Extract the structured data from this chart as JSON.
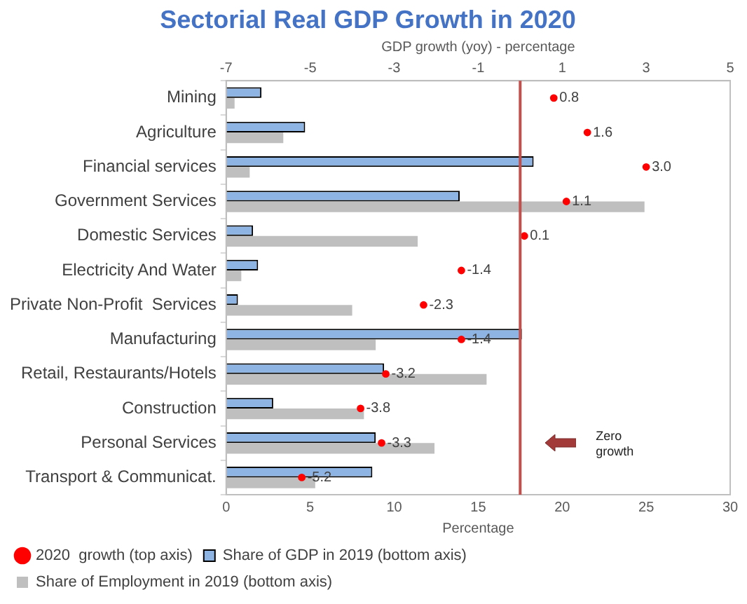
{
  "chart_data": {
    "type": "bar",
    "orientation": "horizontal",
    "title": "Sectorial Real GDP Growth in 2020",
    "xlabel": "Percentage",
    "x2label": "GDP growth (yoy) - percentage",
    "categories": [
      "Mining",
      "Agriculture",
      "Financial services",
      "Government Services",
      "Domestic Services",
      "Electricity And Water",
      "Private Non-Profit  Services",
      "Manufacturing",
      "Retail, Restaurants/Hotels",
      "Construction",
      "Personal Services",
      "Transport & Communicat."
    ],
    "series": [
      {
        "name": "Share of GDP in 2019 (bottom axis)",
        "color": "#8db4e2",
        "values": [
          2.1,
          4.7,
          18.3,
          13.9,
          1.6,
          1.9,
          0.7,
          17.6,
          9.4,
          2.8,
          8.9,
          8.7
        ]
      },
      {
        "name": "Share of Employment in 2019 (bottom axis)",
        "color": "#bfbfbf",
        "values": [
          0.5,
          3.4,
          1.4,
          24.9,
          11.4,
          0.9,
          7.5,
          8.9,
          15.5,
          8.2,
          12.4,
          5.3
        ]
      },
      {
        "name": "2020  growth (top axis)",
        "type": "scatter",
        "axis": "x2",
        "color": "#ff0000",
        "values": [
          0.8,
          1.6,
          3.0,
          1.1,
          0.1,
          -1.4,
          -2.3,
          -1.4,
          -3.2,
          -3.8,
          -3.3,
          -5.2
        ],
        "value_labels": [
          "0.8",
          "1.6",
          "3.0",
          "1.1",
          "0.1",
          "-1.4",
          "-2.3",
          "-1.4",
          "-3.2",
          "-3.8",
          "-3.3",
          "-5.2"
        ]
      }
    ],
    "xlim": [
      0,
      30
    ],
    "xticks": [
      0,
      5,
      10,
      15,
      20,
      25,
      30
    ],
    "x2lim": [
      -7,
      5
    ],
    "x2ticks": [
      -7,
      -5,
      -3,
      -1,
      1,
      3,
      5
    ],
    "ref_lines": [
      {
        "axis": "x2",
        "value": 0,
        "color": "#c0504d"
      }
    ],
    "annotations": [
      "Zero growth"
    ],
    "grid": false,
    "legend": "bottom left",
    "marker": "circle"
  }
}
